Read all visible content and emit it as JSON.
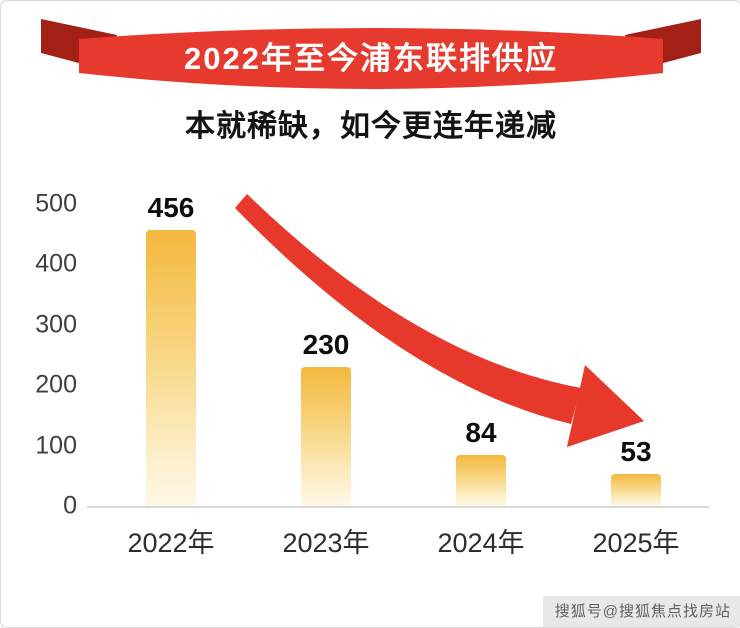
{
  "banner": {
    "title": "2022年至今浦东联排供应"
  },
  "subtitle": "本就稀缺，如今更连年递减",
  "chart_data": {
    "type": "bar",
    "title": "2022年至今浦东联排供应",
    "subtitle": "本就稀缺，如今更连年递减",
    "categories": [
      "2022年",
      "2023年",
      "2024年",
      "2025年"
    ],
    "values": [
      456,
      230,
      84,
      53
    ],
    "yticks": [
      0,
      100,
      200,
      300,
      400,
      500
    ],
    "ylim": [
      0,
      500
    ],
    "xlabel": "",
    "ylabel": "",
    "grid": false,
    "legend": "none",
    "annotation": "red tapered arrow curving downward across bars indicating year-over-year decline",
    "bar_color_top": "#f4b83e",
    "bar_color_bottom": "#fdf7e6"
  },
  "colors": {
    "ribbon_red": "#e73a2e",
    "ribbon_fold_dark": "#a32017",
    "arrow_red": "#e7392b",
    "axis_text": "#3f3f3f",
    "value_text": "#0e0e0e",
    "baseline": "#d8d8d8"
  },
  "watermark": "搜狐号@搜狐焦点找房站"
}
